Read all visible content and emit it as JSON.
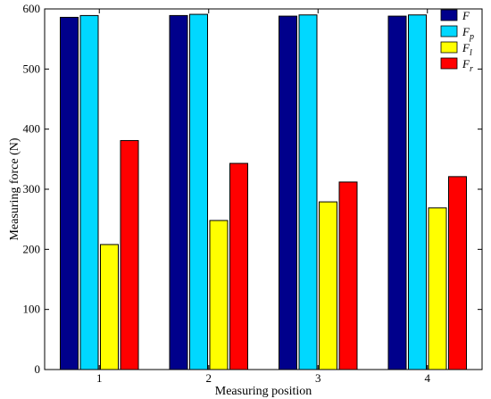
{
  "chart_data": {
    "type": "bar",
    "categories": [
      "1",
      "2",
      "3",
      "4"
    ],
    "series": [
      {
        "name": "F",
        "label_main": "F",
        "label_sub": "",
        "color": "#00008b",
        "values": [
          586,
          589,
          588,
          588
        ]
      },
      {
        "name": "F_p",
        "label_main": "F",
        "label_sub": "p",
        "color": "#00d8ff",
        "values": [
          589,
          591,
          590,
          590
        ]
      },
      {
        "name": "F_l",
        "label_main": "F",
        "label_sub": "l",
        "color": "#ffff00",
        "values": [
          208,
          248,
          279,
          269
        ]
      },
      {
        "name": "F_r",
        "label_main": "F",
        "label_sub": "r",
        "color": "#ff0000",
        "values": [
          381,
          343,
          312,
          321
        ]
      }
    ],
    "xlabel": "Measuring position",
    "ylabel": "Measuring force  (N)",
    "ylim": [
      0,
      600
    ],
    "yticks": [
      "0",
      "100",
      "200",
      "300",
      "400",
      "500",
      "600"
    ],
    "grid": false,
    "legend_position": "top-right"
  }
}
